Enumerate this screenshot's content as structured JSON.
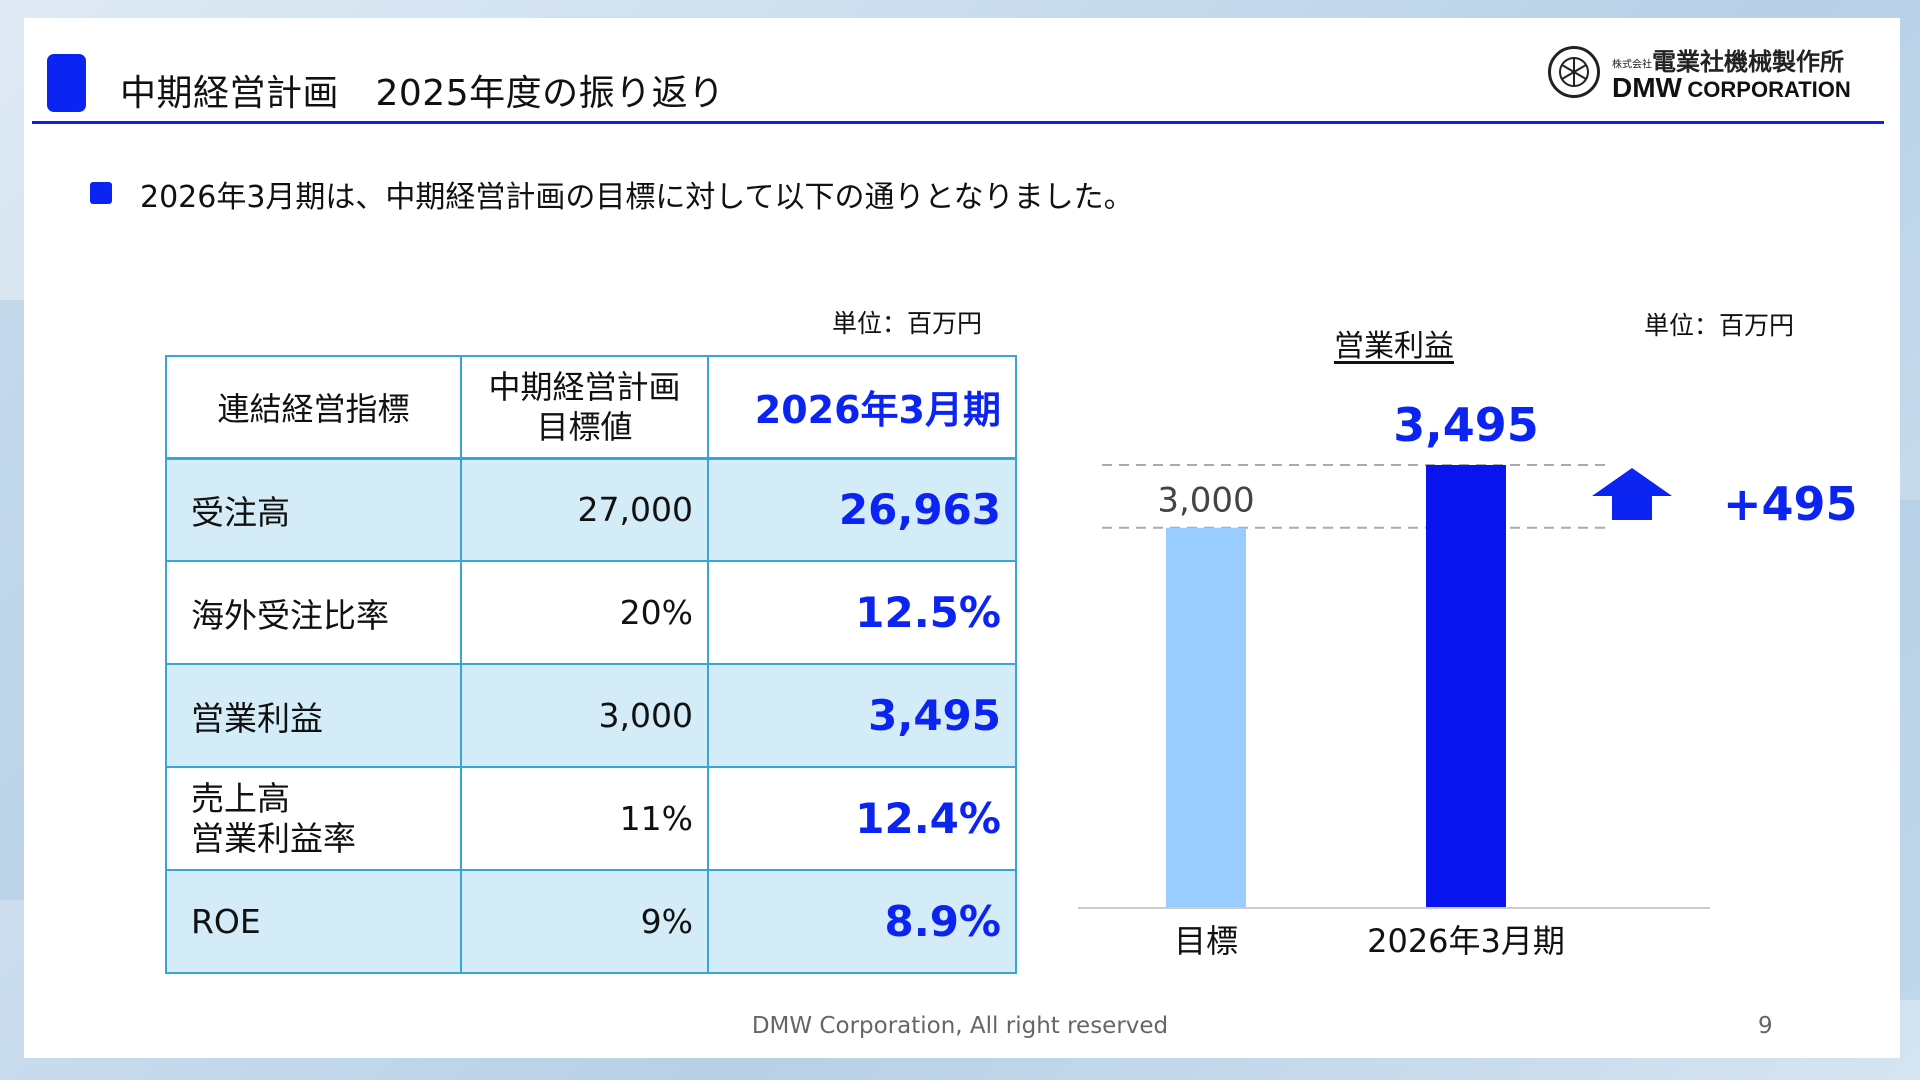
{
  "header": {
    "title": "中期経営計画　2025年度の振り返り",
    "logo": {
      "jp_name": "電業社機械製作所",
      "jp_prefix": "株式会社",
      "en_name": "DMW",
      "en_suffix": "CORPORATION"
    }
  },
  "lead_text": "2026年3月期は、中期経営計画の目標に対して以下の通りとなりました。",
  "table": {
    "unit": "単位：百万円",
    "headers": {
      "name": "連結経営指標",
      "target_line1": "中期経営計画",
      "target_line2": "目標値",
      "result": "2026年3月期"
    },
    "rows": [
      {
        "name": "受注高",
        "target": "27,000",
        "result": "26,963"
      },
      {
        "name": "海外受注比率",
        "target": "20%",
        "result": "12.5%"
      },
      {
        "name": "営業利益",
        "target": "3,000",
        "result": "3,495"
      },
      {
        "name_line1": "売上高",
        "name_line2": "営業利益率",
        "target": "11%",
        "result": "12.4%"
      },
      {
        "name": "ROE",
        "target": "9%",
        "result": "8.9%"
      }
    ]
  },
  "chart": {
    "title": "営業利益",
    "unit": "単位：百万円",
    "delta_label": "+495"
  },
  "chart_data": {
    "type": "bar",
    "title": "営業利益",
    "categories": [
      "目標",
      "2026年3月期"
    ],
    "values": [
      3000,
      3495
    ],
    "value_labels": [
      "3,000",
      "3,495"
    ],
    "colors": [
      "#99ccff",
      "#0a14ee"
    ],
    "label_colors": [
      "#444444",
      "#0b24f2"
    ],
    "ylim": [
      0,
      3495
    ],
    "annotation": "+495",
    "reference_lines": [
      3000,
      3495
    ]
  },
  "footer": {
    "copyright": "DMW Corporation, All right reserved",
    "page": "9"
  },
  "colors": {
    "accent": "#0b24f2",
    "table_border": "#39a4d8",
    "row_fill": "#d4ecf7"
  }
}
